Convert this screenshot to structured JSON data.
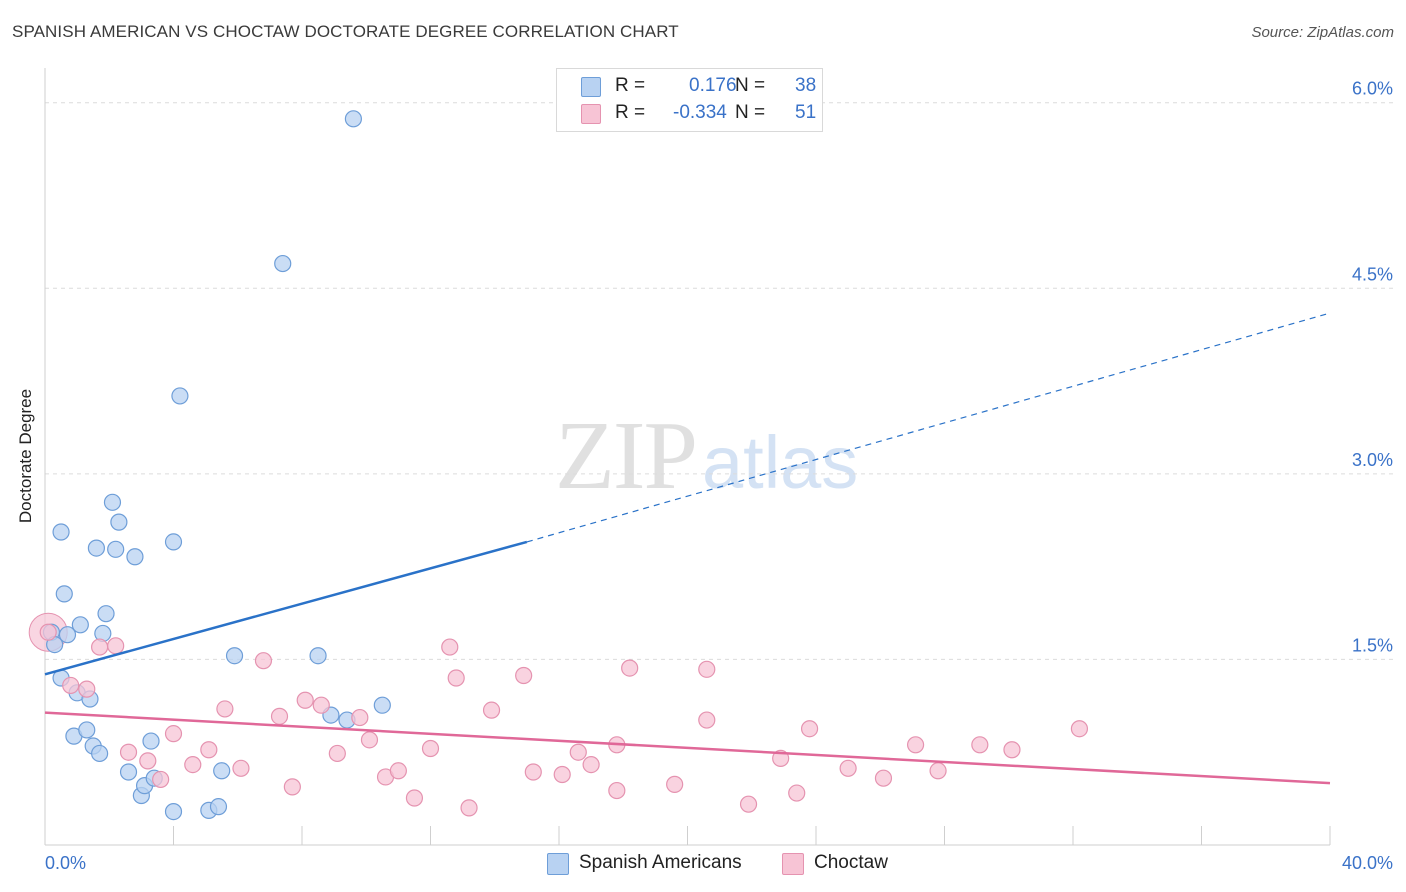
{
  "title": "SPANISH AMERICAN VS CHOCTAW DOCTORATE DEGREE CORRELATION CHART",
  "source": "Source: ZipAtlas.com",
  "watermark": {
    "zip": "ZIP",
    "atlas": "atlas"
  },
  "legend": {
    "rows": [
      {
        "r_label": "R =",
        "r_value": "0.176",
        "n_label": "N =",
        "n_value": "38"
      },
      {
        "r_label": "R =",
        "r_value": "-0.334",
        "n_label": "N =",
        "n_value": "51"
      }
    ]
  },
  "colors": {
    "blue_fill": "#b8d2f2",
    "blue_stroke": "#6e9ed8",
    "blue_line": "#2a72c8",
    "pink_fill": "#f7c4d5",
    "pink_stroke": "#e593b0",
    "pink_line": "#e06898",
    "axis_text": "#3a72c8"
  },
  "chart_data": {
    "type": "scatter",
    "title": "SPANISH AMERICAN VS CHOCTAW DOCTORATE DEGREE CORRELATION CHART",
    "xlabel": "",
    "ylabel": "Doctorate Degree",
    "xlim": [
      0,
      40
    ],
    "ylim": [
      0,
      6.2
    ],
    "x_tick_labels": [
      {
        "x": 0,
        "label": "0.0%"
      },
      {
        "x": 40,
        "label": "40.0%"
      }
    ],
    "x_minor_ticks": [
      0,
      4,
      8,
      12,
      16,
      20,
      24,
      28,
      32,
      36,
      40
    ],
    "y_ticks": [
      {
        "y": 1.5,
        "label": "1.5%"
      },
      {
        "y": 3.0,
        "label": "3.0%"
      },
      {
        "y": 4.5,
        "label": "4.5%"
      },
      {
        "y": 6.0,
        "label": "6.0%"
      }
    ],
    "grid": "horizontal dashed",
    "legend_position": "top-center",
    "series": [
      {
        "name": "Spanish Americans",
        "r": 0.176,
        "n": 38,
        "trend": {
          "x0": 0,
          "y0": 1.38,
          "x1": 15,
          "y1": 2.45,
          "x_dash_end": 40,
          "y_dash_end": 4.3
        },
        "points": [
          [
            0.2,
            1.72
          ],
          [
            0.3,
            1.62
          ],
          [
            0.5,
            1.35
          ],
          [
            0.5,
            2.53
          ],
          [
            0.6,
            2.03
          ],
          [
            0.7,
            1.7
          ],
          [
            0.9,
            0.88
          ],
          [
            1.0,
            1.23
          ],
          [
            1.1,
            1.78
          ],
          [
            1.3,
            0.93
          ],
          [
            1.4,
            1.18
          ],
          [
            1.5,
            0.8
          ],
          [
            1.6,
            2.4
          ],
          [
            1.7,
            0.74
          ],
          [
            1.8,
            1.71
          ],
          [
            1.9,
            1.87
          ],
          [
            2.1,
            2.77
          ],
          [
            2.2,
            2.39
          ],
          [
            2.3,
            2.61
          ],
          [
            2.6,
            0.59
          ],
          [
            2.8,
            2.33
          ],
          [
            3.0,
            0.4
          ],
          [
            3.1,
            0.48
          ],
          [
            3.3,
            0.84
          ],
          [
            3.4,
            0.54
          ],
          [
            4.0,
            2.45
          ],
          [
            4.0,
            0.27
          ],
          [
            4.2,
            3.63
          ],
          [
            5.1,
            0.28
          ],
          [
            5.4,
            0.31
          ],
          [
            5.5,
            0.6
          ],
          [
            5.9,
            1.53
          ],
          [
            7.4,
            4.7
          ],
          [
            8.5,
            1.53
          ],
          [
            8.9,
            1.05
          ],
          [
            9.4,
            1.01
          ],
          [
            9.6,
            5.87
          ],
          [
            10.5,
            1.13
          ]
        ]
      },
      {
        "name": "Choctaw",
        "r": -0.334,
        "n": 51,
        "trend": {
          "x0": 0,
          "y0": 1.07,
          "x1": 40,
          "y1": 0.5
        },
        "points": [
          [
            0.1,
            1.72
          ],
          [
            0.8,
            1.29
          ],
          [
            1.3,
            1.26
          ],
          [
            1.7,
            1.6
          ],
          [
            2.2,
            1.61
          ],
          [
            2.6,
            0.75
          ],
          [
            3.2,
            0.68
          ],
          [
            3.6,
            0.53
          ],
          [
            4.0,
            0.9
          ],
          [
            4.6,
            0.65
          ],
          [
            5.1,
            0.77
          ],
          [
            5.6,
            1.1
          ],
          [
            6.1,
            0.62
          ],
          [
            6.8,
            1.49
          ],
          [
            7.3,
            1.04
          ],
          [
            7.7,
            0.47
          ],
          [
            8.1,
            1.17
          ],
          [
            8.6,
            1.13
          ],
          [
            9.1,
            0.74
          ],
          [
            9.8,
            1.03
          ],
          [
            10.1,
            0.85
          ],
          [
            10.6,
            0.55
          ],
          [
            11.0,
            0.6
          ],
          [
            11.5,
            0.38
          ],
          [
            12.0,
            0.78
          ],
          [
            12.6,
            1.6
          ],
          [
            12.8,
            1.35
          ],
          [
            13.2,
            0.3
          ],
          [
            13.9,
            1.09
          ],
          [
            14.9,
            1.37
          ],
          [
            15.2,
            0.59
          ],
          [
            16.1,
            0.57
          ],
          [
            16.6,
            0.75
          ],
          [
            17.0,
            0.65
          ],
          [
            17.8,
            0.44
          ],
          [
            17.8,
            0.81
          ],
          [
            18.2,
            1.43
          ],
          [
            19.6,
            0.49
          ],
          [
            20.6,
            1.01
          ],
          [
            20.6,
            1.42
          ],
          [
            21.9,
            0.33
          ],
          [
            22.9,
            0.7
          ],
          [
            23.4,
            0.42
          ],
          [
            23.8,
            0.94
          ],
          [
            25.0,
            0.62
          ],
          [
            26.1,
            0.54
          ],
          [
            27.1,
            0.81
          ],
          [
            27.8,
            0.6
          ],
          [
            29.1,
            0.81
          ],
          [
            30.1,
            0.77
          ],
          [
            32.2,
            0.94
          ]
        ]
      }
    ]
  }
}
